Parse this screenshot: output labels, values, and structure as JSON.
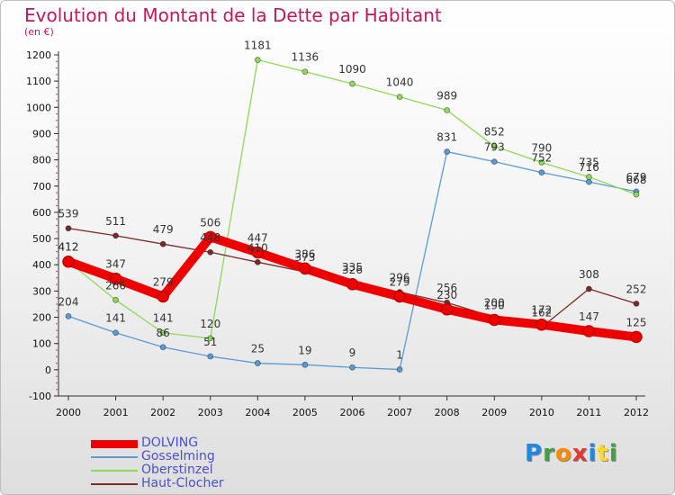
{
  "chart_data": {
    "type": "line",
    "title": "Evolution du Montant de la Dette par Habitant",
    "subtitle": "(en €)",
    "x": [
      "2000",
      "2001",
      "2002",
      "2003",
      "2004",
      "2005",
      "2006",
      "2007",
      "2008",
      "2009",
      "2010",
      "2011",
      "2012"
    ],
    "ylim": [
      -100,
      1200
    ],
    "yticks": [
      -100,
      0,
      100,
      200,
      300,
      400,
      500,
      600,
      700,
      800,
      900,
      1000,
      1100,
      1200
    ],
    "grid": false,
    "legend_position": "bottom-left",
    "series": [
      {
        "name": "DOLVING",
        "color": "#ee0000",
        "values": [
          412,
          347,
          279,
          506,
          447,
          386,
          326,
          279,
          230,
          190,
          172,
          147,
          125
        ]
      },
      {
        "name": "Gosselming",
        "color": "#5b9bd5",
        "values": [
          204,
          141,
          86,
          51,
          25,
          19,
          9,
          1,
          831,
          793,
          752,
          716,
          679
        ]
      },
      {
        "name": "Oberstinzel",
        "color": "#8fd85a",
        "values": [
          412,
          266,
          141,
          120,
          1181,
          1136,
          1090,
          1040,
          989,
          852,
          790,
          735,
          668
        ]
      },
      {
        "name": "Haut-Clocher",
        "color": "#7a2a2a",
        "values": [
          539,
          511,
          479,
          448,
          410,
          373,
          335,
          296,
          256,
          200,
          162,
          308,
          252
        ]
      }
    ]
  },
  "logo": {
    "letters": [
      "P",
      "r",
      "o",
      "x",
      "i",
      "t",
      "i"
    ],
    "colors": [
      "#1e88e5",
      "#43a047",
      "#fb8c00",
      "#e53935",
      "#1e88e5",
      "#fdd835",
      "#43a047"
    ]
  }
}
